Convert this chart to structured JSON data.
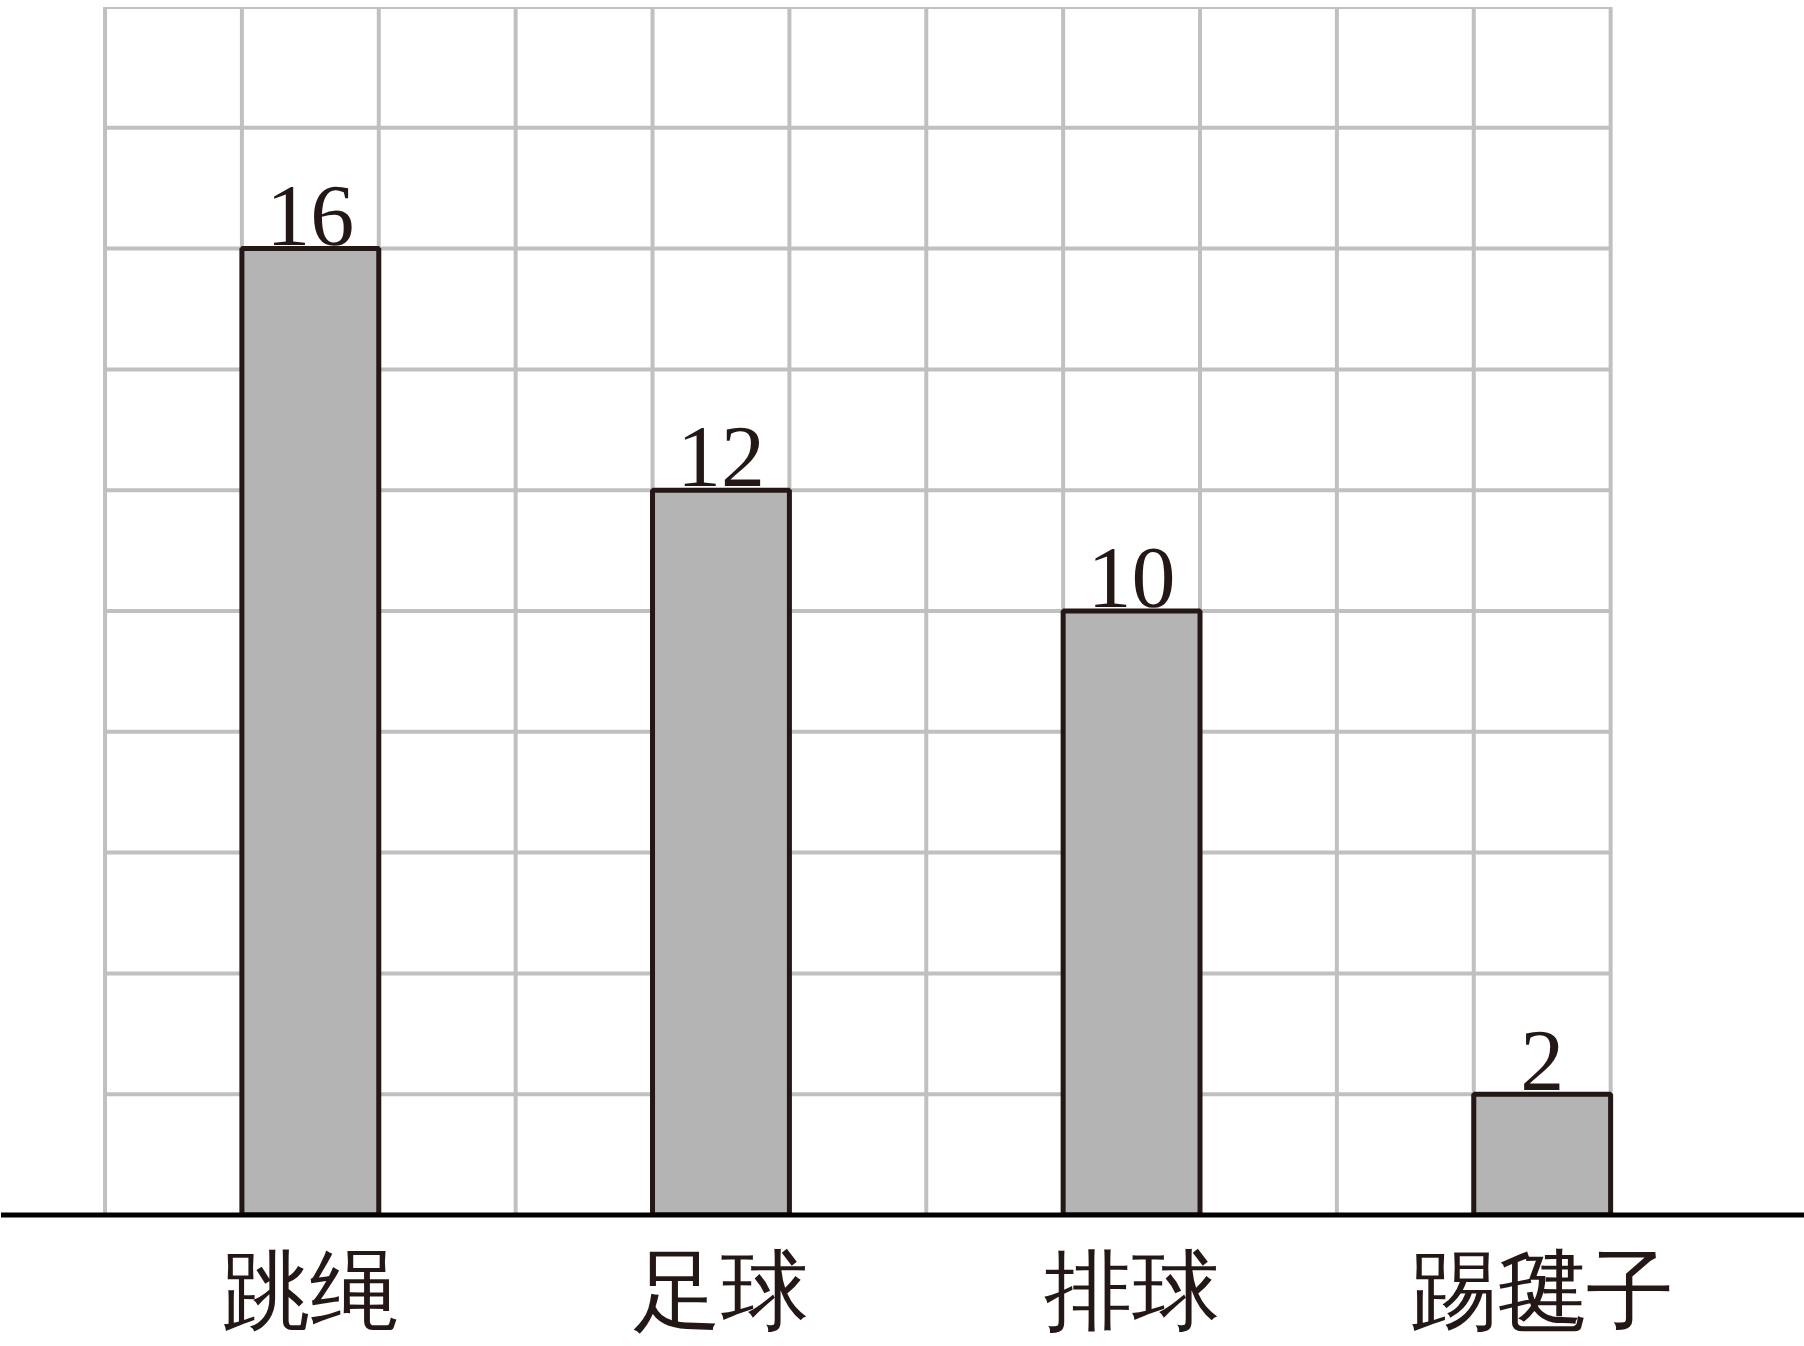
{
  "chart_data": {
    "type": "bar",
    "categories": [
      "跳绳",
      "足球",
      "排球",
      "踢毽子"
    ],
    "values": [
      16,
      12,
      10,
      2
    ],
    "color": "#b4b4b4",
    "ylim": [
      0,
      20
    ],
    "yticks": [
      {
        "value": 0,
        "label": null
      },
      {
        "value": 2,
        "label": null
      },
      {
        "value": 4,
        "label": null
      },
      {
        "value": 6,
        "label": null
      },
      {
        "value": 8,
        "label": null
      },
      {
        "value": 10,
        "label": null
      },
      {
        "value": 12,
        "label": null
      },
      {
        "value": 14,
        "label": null
      },
      {
        "value": 16,
        "label": null
      },
      {
        "value": 18,
        "label": null
      },
      {
        "value": 20,
        "label": null
      }
    ],
    "grid": true,
    "data_labels": true,
    "tick_labels": "x"
  }
}
